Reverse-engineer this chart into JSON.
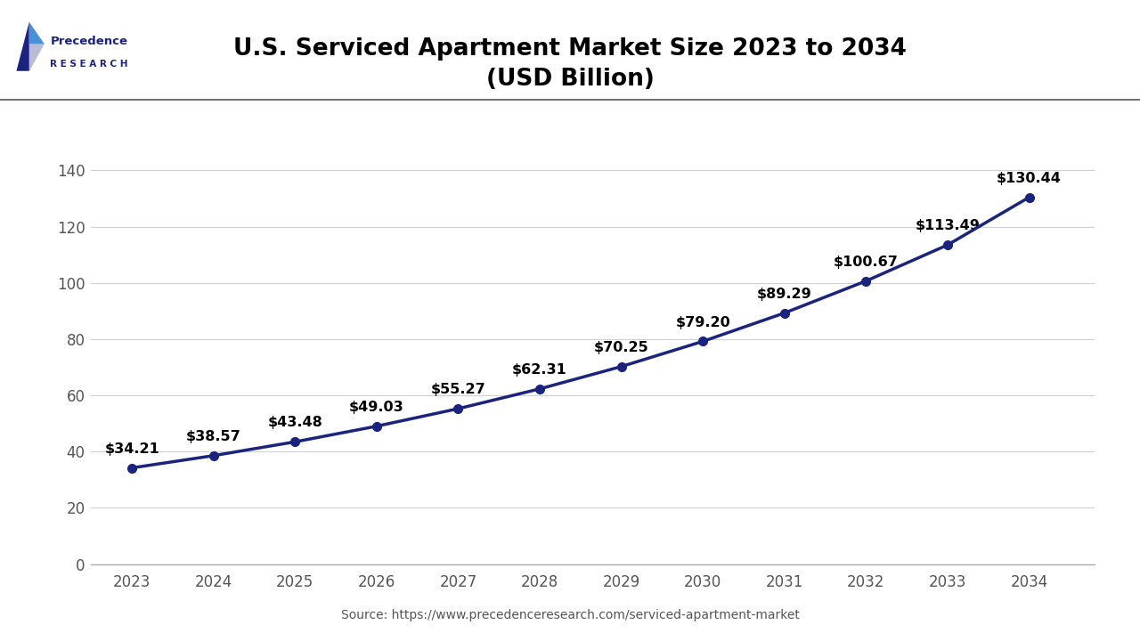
{
  "title_line1": "U.S. Serviced Apartment Market Size 2023 to 2034",
  "title_line2": "(USD Billion)",
  "years": [
    2023,
    2024,
    2025,
    2026,
    2027,
    2028,
    2029,
    2030,
    2031,
    2032,
    2033,
    2034
  ],
  "values": [
    34.21,
    38.57,
    43.48,
    49.03,
    55.27,
    62.31,
    70.25,
    79.2,
    89.29,
    100.67,
    113.49,
    130.44
  ],
  "labels": [
    "$34.21",
    "$38.57",
    "$43.48",
    "$49.03",
    "$55.27",
    "$62.31",
    "$70.25",
    "$79.20",
    "$89.29",
    "$100.67",
    "$113.49",
    "$130.44"
  ],
  "line_color": "#1a237e",
  "marker_color": "#1a237e",
  "bg_color": "#ffffff",
  "plot_bg_color": "#ffffff",
  "grid_color": "#d0d0d0",
  "title_color": "#000000",
  "tick_color": "#555555",
  "label_color": "#000000",
  "source_text": "Source: https://www.precedenceresearch.com/serviced-apartment-market",
  "ylim": [
    0,
    155
  ],
  "yticks": [
    0,
    20,
    40,
    60,
    80,
    100,
    120,
    140
  ],
  "title_fontsize": 19,
  "label_fontsize": 11.5,
  "tick_fontsize": 12,
  "source_fontsize": 10,
  "line_width": 2.5,
  "marker_size": 7
}
